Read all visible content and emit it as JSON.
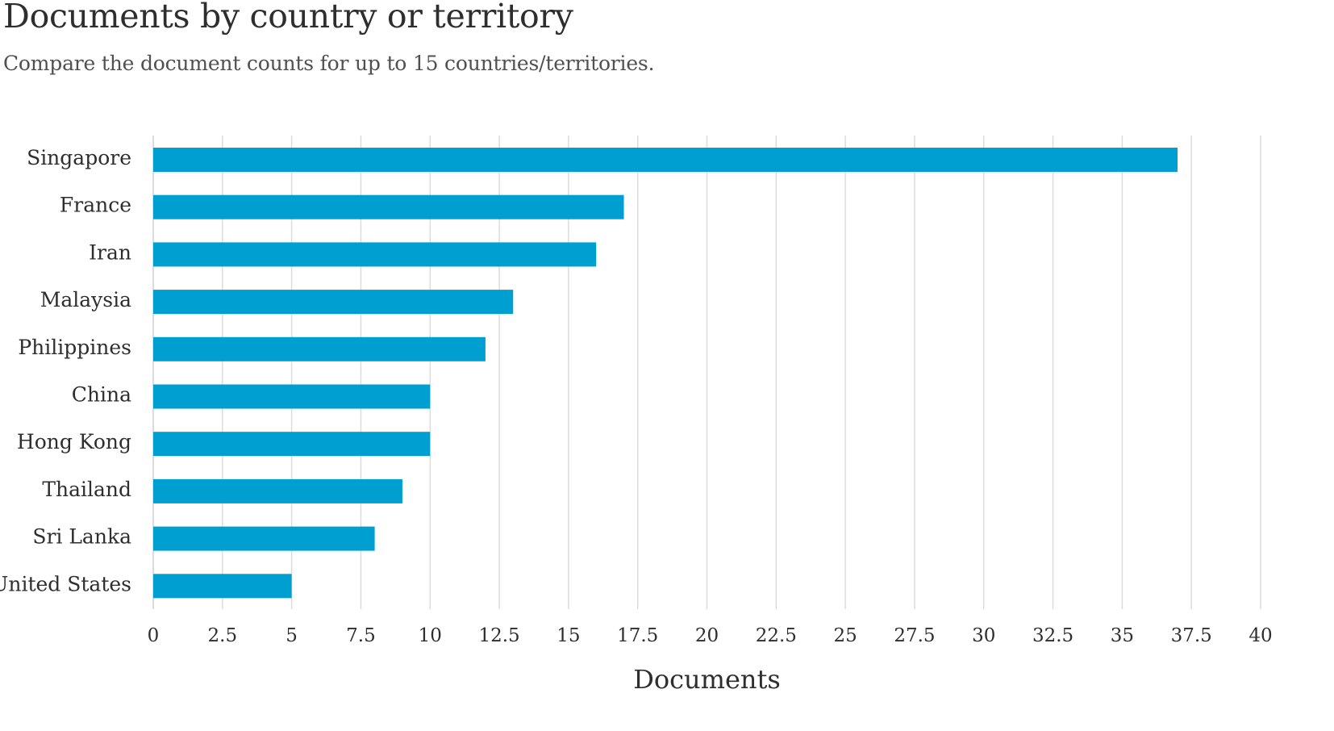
{
  "header": {
    "title": "Documents by country or territory",
    "subtitle": "Compare the document counts for up to 15 countries/territories."
  },
  "chart_data": {
    "type": "bar",
    "orientation": "horizontal",
    "categories": [
      "Singapore",
      "France",
      "Iran",
      "Malaysia",
      "Philippines",
      "China",
      "Hong Kong",
      "Thailand",
      "Sri Lanka",
      "United States"
    ],
    "values": [
      37,
      17,
      16,
      13,
      12,
      10,
      10,
      9,
      8,
      5
    ],
    "xlabel": "Documents",
    "xlim": [
      0,
      40
    ],
    "xticks": [
      "0",
      "2.5",
      "5",
      "7.5",
      "10",
      "12.5",
      "15",
      "17.5",
      "20",
      "22.5",
      "25",
      "27.5",
      "30",
      "32.5",
      "35",
      "37.5",
      "40"
    ],
    "grid": true,
    "bar_color": "#009fd1",
    "grid_color": "#dcdcdc"
  }
}
